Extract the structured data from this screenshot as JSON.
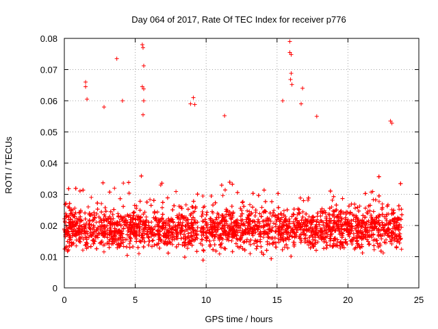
{
  "chart_data": {
    "type": "scatter",
    "title": "Day 064 of 2017, Rate Of TEC Index for receiver p776",
    "xlabel": "GPS time / hours",
    "ylabel": "ROTI / TECUs",
    "xlim": [
      0,
      25
    ],
    "ylim": [
      0,
      0.08
    ],
    "x_ticks": [
      0,
      5,
      10,
      15,
      20,
      25
    ],
    "x_tick_labels": [
      "0",
      "5",
      "10",
      "15",
      "20",
      "25"
    ],
    "y_ticks": [
      0,
      0.01,
      0.02,
      0.03,
      0.04,
      0.05,
      0.06,
      0.07,
      0.08
    ],
    "y_tick_labels": [
      "0",
      "0.01",
      "0.02",
      "0.03",
      "0.04",
      "0.05",
      "0.06",
      "0.07",
      "0.08"
    ],
    "grid": true,
    "marker": "+",
    "color": "#ff0000",
    "data_extent_hours": [
      0,
      23.8
    ],
    "typical_range": [
      0.005,
      0.045
    ],
    "gap_hours": [
      9.4,
      9.6
    ],
    "outliers": [
      {
        "x": 1.5,
        "y": 0.066
      },
      {
        "x": 1.5,
        "y": 0.0645
      },
      {
        "x": 1.6,
        "y": 0.0605
      },
      {
        "x": 2.8,
        "y": 0.058
      },
      {
        "x": 3.7,
        "y": 0.0735
      },
      {
        "x": 4.1,
        "y": 0.06
      },
      {
        "x": 5.5,
        "y": 0.078
      },
      {
        "x": 5.55,
        "y": 0.077
      },
      {
        "x": 5.6,
        "y": 0.0712
      },
      {
        "x": 5.5,
        "y": 0.0645
      },
      {
        "x": 5.6,
        "y": 0.0638
      },
      {
        "x": 5.6,
        "y": 0.06
      },
      {
        "x": 5.55,
        "y": 0.0555
      },
      {
        "x": 8.9,
        "y": 0.059
      },
      {
        "x": 9.1,
        "y": 0.061
      },
      {
        "x": 9.2,
        "y": 0.0588
      },
      {
        "x": 11.3,
        "y": 0.0552
      },
      {
        "x": 15.4,
        "y": 0.06
      },
      {
        "x": 15.9,
        "y": 0.079
      },
      {
        "x": 15.9,
        "y": 0.0755
      },
      {
        "x": 16.0,
        "y": 0.0748
      },
      {
        "x": 16.0,
        "y": 0.0688
      },
      {
        "x": 15.95,
        "y": 0.0668
      },
      {
        "x": 16.05,
        "y": 0.0652
      },
      {
        "x": 16.8,
        "y": 0.064
      },
      {
        "x": 16.7,
        "y": 0.059
      },
      {
        "x": 17.8,
        "y": 0.055
      },
      {
        "x": 23.0,
        "y": 0.0535
      },
      {
        "x": 23.1,
        "y": 0.0528
      }
    ]
  }
}
